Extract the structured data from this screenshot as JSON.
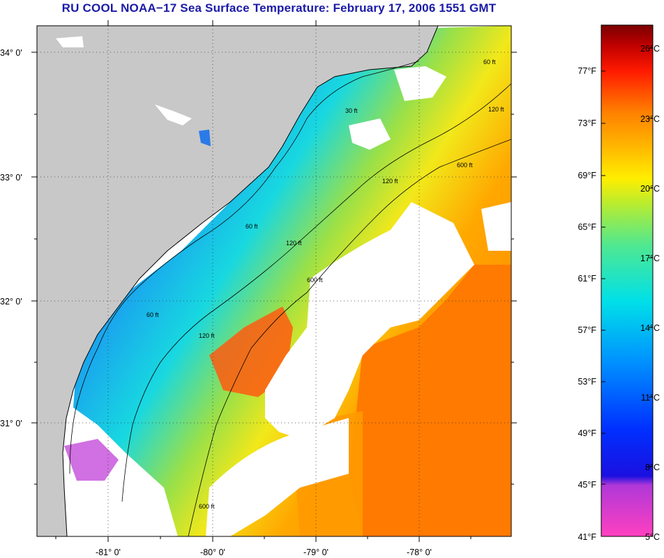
{
  "title": "RU COOL  NOAA−17  Sea Surface Temperature:  February 17, 2006 1551 GMT",
  "map": {
    "lat_labels": [
      "34° 0'",
      "33° 0'",
      "32° 0'",
      "31° 0'"
    ],
    "lon_labels": [
      "-81° 0'",
      "-80° 0'",
      "-79° 0'",
      "-78° 0'"
    ],
    "contour_labels": [
      "30 ft",
      "60 ft",
      "120 ft",
      "600 ft",
      "120 ft",
      "60 ft",
      "120 ft",
      "600 ft",
      "60 ft",
      "120 ft",
      "600 ft"
    ]
  },
  "colorbar": {
    "fahrenheit_labels": [
      "77°F",
      "73°F",
      "69°F",
      "65°F",
      "61°F",
      "57°F",
      "53°F",
      "49°F",
      "45°F",
      "41°F"
    ],
    "celsius_labels": [
      "26°C",
      "23°C",
      "20°C",
      "17°C",
      "14°C",
      "11°C",
      "8°C",
      "5°C"
    ],
    "colors": {
      "max": "#7a0000",
      "red": "#ff2a00",
      "orange": "#ff8c00",
      "yellow": "#ffee00",
      "green": "#8ee03a",
      "cyan": "#00e0e8",
      "blue": "#0040ff",
      "violet": "#9a2ad0",
      "min": "#ff40c0"
    }
  }
}
